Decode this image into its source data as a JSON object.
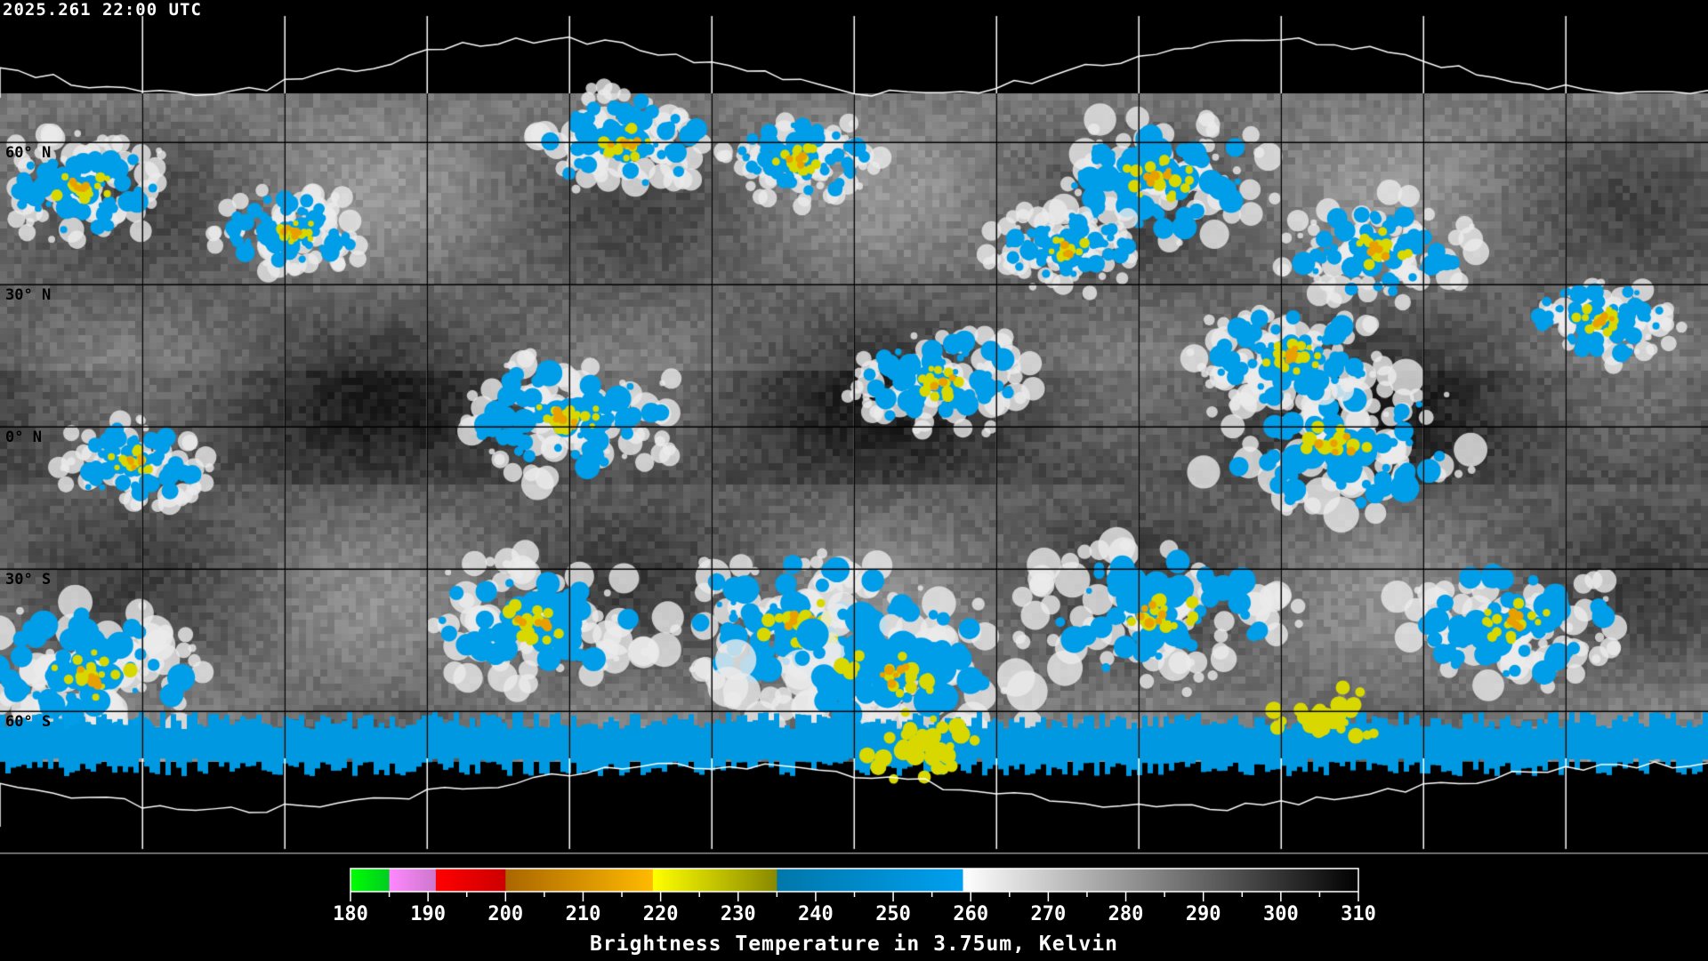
{
  "header": {
    "timestamp": "2025.261 22:00 UTC"
  },
  "map": {
    "projection": "equirectangular",
    "lat_labels": [
      "60° N",
      "30° N",
      "0° N",
      "30° S",
      "60° S"
    ],
    "grid_spacing_deg": 30,
    "coastline_color": "#000000",
    "grid_color_outside": "#ffffff"
  },
  "chart_data": {
    "type": "heatmap",
    "title": "2025.261 22:00 UTC",
    "colorbar": {
      "label": "Brightness Temperature in 3.75um, Kelvin",
      "range": [
        180,
        310
      ],
      "tick_labels": [
        "180",
        "190",
        "200",
        "210",
        "220",
        "230",
        "240",
        "250",
        "260",
        "270",
        "280",
        "290",
        "300",
        "310"
      ],
      "minor_tick_step": 5,
      "segments": [
        {
          "from": 180,
          "to": 185,
          "colors": [
            "#00ff00",
            "#00cc22"
          ]
        },
        {
          "from": 185,
          "to": 191,
          "colors": [
            "#ff88ff",
            "#cc77cc"
          ]
        },
        {
          "from": 191,
          "to": 200,
          "colors": [
            "#ff0000",
            "#cc0000"
          ]
        },
        {
          "from": 200,
          "to": 219,
          "colors": [
            "#aa6600",
            "#ffbb00"
          ]
        },
        {
          "from": 219,
          "to": 235,
          "colors": [
            "#ffff00",
            "#888800"
          ]
        },
        {
          "from": 235,
          "to": 259,
          "colors": [
            "#0077aa",
            "#00a0f0"
          ]
        },
        {
          "from": 259,
          "to": 310,
          "colors": [
            "#ffffff",
            "#000000"
          ]
        }
      ]
    }
  }
}
